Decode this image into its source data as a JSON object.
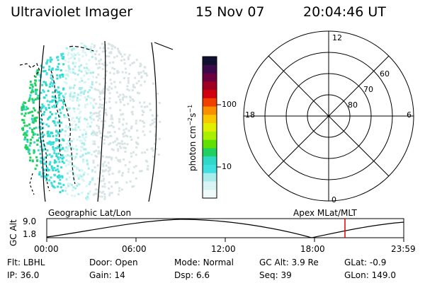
{
  "header": {
    "title": "Ultraviolet Imager",
    "date": "15 Nov 07",
    "time": "20:04:46 UT"
  },
  "colorbar": {
    "label_main": "photon cm",
    "label_exp1": "−2",
    "label_mid": "s",
    "label_exp2": "−1",
    "ticks": [
      "100",
      "10"
    ],
    "colors": [
      "#101030",
      "#3a0a4a",
      "#6a0040",
      "#a00020",
      "#d00010",
      "#f04000",
      "#f89000",
      "#f8c800",
      "#e0f000",
      "#a8f000",
      "#60e000",
      "#20d060",
      "#30d8c8",
      "#40e0e0",
      "#a8ecec",
      "#d8f4f4",
      "#eefafa"
    ]
  },
  "polar": {
    "clock_labels": {
      "top": "12",
      "left": "18",
      "right": "6",
      "bottom": "0"
    },
    "lat_labels": [
      "60",
      "70",
      "80"
    ]
  },
  "altitude_plot": {
    "ylabel": "GC Alt",
    "ymax": "9.0",
    "ymin": "1.8",
    "left_title": "Geographic Lat/Lon",
    "right_title": "Apex MLat/MLT",
    "xticks": [
      "00:00",
      "06:00",
      "12:00",
      "18:00",
      "23:59"
    ],
    "marker_color": "#e00000"
  },
  "status": {
    "row1": [
      {
        "label": "Flt:",
        "value": "LBHL"
      },
      {
        "label": "Door:",
        "value": "Open"
      },
      {
        "label": "Mode:",
        "value": "Normal"
      },
      {
        "label": "GC Alt:",
        "value": "3.9 Re"
      },
      {
        "label": "GLat:",
        "value": "-0.9"
      }
    ],
    "row2": [
      {
        "label": "IP:",
        "value": "36.0"
      },
      {
        "label": "Gain:",
        "value": "14"
      },
      {
        "label": "Dsp:",
        "value": "6.6"
      },
      {
        "label": "Seq:",
        "value": "39"
      },
      {
        "label": "GLon:",
        "value": "149.0"
      }
    ]
  }
}
